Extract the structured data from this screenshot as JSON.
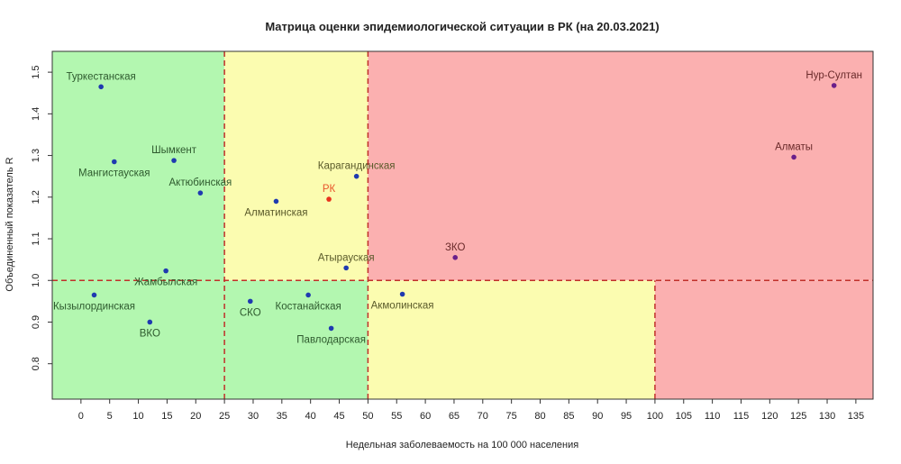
{
  "chart_data": {
    "type": "scatter",
    "title": "Матрица оценки эпидемиологической ситуации в РК (на 20.03.2021)",
    "xlabel": "Недельная заболеваемость на 100 000 населения",
    "ylabel": "Объединенный показатель R",
    "xlim": [
      -5,
      138
    ],
    "ylim": [
      0.715,
      1.55
    ],
    "x_ticks": [
      0,
      5,
      10,
      15,
      20,
      25,
      30,
      35,
      40,
      45,
      50,
      55,
      60,
      65,
      70,
      75,
      80,
      85,
      90,
      95,
      100,
      105,
      110,
      115,
      120,
      125,
      130,
      135
    ],
    "y_ticks": [
      0.8,
      0.9,
      1.0,
      1.1,
      1.2,
      1.3,
      1.4,
      1.5
    ],
    "zones": [
      {
        "x": [
          -5,
          25
        ],
        "y": [
          0.715,
          1.55
        ],
        "color": "#b3f7b0"
      },
      {
        "x": [
          25,
          50
        ],
        "y": [
          1.0,
          1.55
        ],
        "color": "#fbfcb0"
      },
      {
        "x": [
          25,
          50
        ],
        "y": [
          0.715,
          1.0
        ],
        "color": "#b3f7b0"
      },
      {
        "x": [
          50,
          138
        ],
        "y": [
          1.0,
          1.55
        ],
        "color": "#fbb0b0"
      },
      {
        "x": [
          50,
          100
        ],
        "y": [
          0.715,
          1.0
        ],
        "color": "#fbfcb0"
      },
      {
        "x": [
          100,
          138
        ],
        "y": [
          0.715,
          1.0
        ],
        "color": "#fbb0b0"
      }
    ],
    "threshold_lines": {
      "vertical": [
        25,
        50,
        100
      ],
      "horizontal": 1.0,
      "color": "#c0302a"
    },
    "points": [
      {
        "label": "Туркестанская",
        "x": 3.5,
        "y": 1.465,
        "color": "#1f3ab0",
        "label_color": "#2e5a2e",
        "label_pos": "above"
      },
      {
        "label": "Мангистауская",
        "x": 5.8,
        "y": 1.285,
        "color": "#1f3ab0",
        "label_color": "#2e5a2e",
        "label_pos": "below"
      },
      {
        "label": "Шымкент",
        "x": 16.2,
        "y": 1.288,
        "color": "#1f3ab0",
        "label_color": "#2e5a2e",
        "label_pos": "above"
      },
      {
        "label": "Актюбинская",
        "x": 20.8,
        "y": 1.21,
        "color": "#1f3ab0",
        "label_color": "#2e5a2e",
        "label_pos": "above"
      },
      {
        "label": "Алматинская",
        "x": 34.0,
        "y": 1.19,
        "color": "#1f3ab0",
        "label_color": "#5a5a2a",
        "label_pos": "below"
      },
      {
        "label": "Карагандинская",
        "x": 48.0,
        "y": 1.25,
        "color": "#1f3ab0",
        "label_color": "#5a5a2a",
        "label_pos": "above"
      },
      {
        "label": "РК",
        "x": 43.2,
        "y": 1.195,
        "color": "#e8331c",
        "label_color": "#e8552c",
        "label_pos": "above"
      },
      {
        "label": "Атырауская",
        "x": 46.2,
        "y": 1.03,
        "color": "#1f3ab0",
        "label_color": "#5a5a2a",
        "label_pos": "above"
      },
      {
        "label": "ЗКО",
        "x": 65.2,
        "y": 1.055,
        "color": "#6a1f8a",
        "label_color": "#6a2a2a",
        "label_pos": "above"
      },
      {
        "label": "Нур-Султан",
        "x": 131.2,
        "y": 1.468,
        "color": "#6a1f8a",
        "label_color": "#6a2a2a",
        "label_pos": "above"
      },
      {
        "label": "Алматы",
        "x": 124.2,
        "y": 1.296,
        "color": "#6a1f8a",
        "label_color": "#6a2a2a",
        "label_pos": "above"
      },
      {
        "label": "Жамбылская",
        "x": 14.8,
        "y": 1.023,
        "color": "#1f3ab0",
        "label_color": "#2e5a2e",
        "label_pos": "below"
      },
      {
        "label": "Кызылординская",
        "x": 2.3,
        "y": 0.965,
        "color": "#1f3ab0",
        "label_color": "#2e5a2e",
        "label_pos": "below"
      },
      {
        "label": "ВКО",
        "x": 12.0,
        "y": 0.9,
        "color": "#1f3ab0",
        "label_color": "#2e5a2e",
        "label_pos": "below"
      },
      {
        "label": "СКО",
        "x": 29.5,
        "y": 0.95,
        "color": "#1f3ab0",
        "label_color": "#2e5a2e",
        "label_pos": "below"
      },
      {
        "label": "Костанайская",
        "x": 39.6,
        "y": 0.965,
        "color": "#1f3ab0",
        "label_color": "#2e5a2e",
        "label_pos": "below"
      },
      {
        "label": "Павлодарская",
        "x": 43.6,
        "y": 0.885,
        "color": "#1f3ab0",
        "label_color": "#2e5a2e",
        "label_pos": "below"
      },
      {
        "label": "Акмолинская",
        "x": 56.0,
        "y": 0.967,
        "color": "#1f3ab0",
        "label_color": "#5a5a2a",
        "label_pos": "below"
      }
    ]
  }
}
